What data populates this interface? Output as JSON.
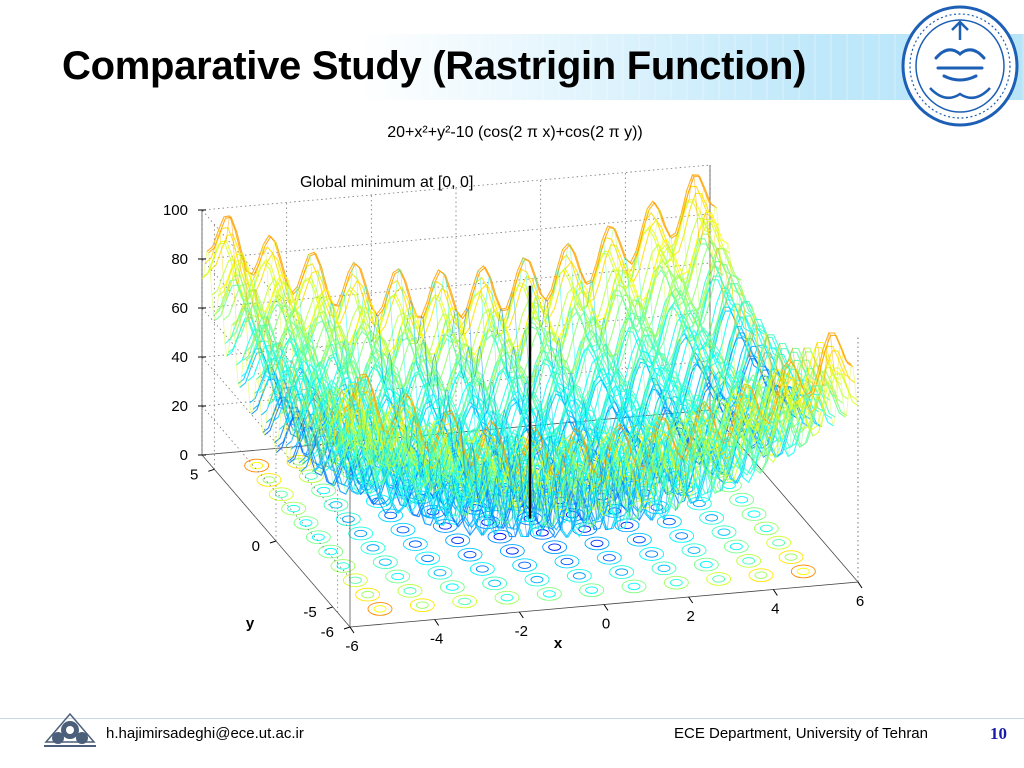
{
  "slide": {
    "title": "Comparative Study (Rastrigin Function)",
    "footer_email": "h.hajimirsadeghi@ece.ut.ac.ir",
    "footer_department": "ECE Department, University of Tehran",
    "page_number": "10"
  },
  "colors": {
    "title_band": "#bfe8fa",
    "seal_blue": "#1d5fb5",
    "page_number": "#1a1aa8"
  },
  "icons": {
    "seal": "university-of-tehran-seal-icon",
    "footer_logo": "ece-department-logo-icon"
  },
  "chart_data": {
    "type": "surface",
    "title": "20+x²+y²-10 (cos(2 π x)+cos(2 π y))",
    "annotation": "Global minimum at [0, 0]",
    "xlabel": "x",
    "ylabel": "y",
    "zlabel": "",
    "x_ticks": [
      "-6",
      "-4",
      "-2",
      "0",
      "2",
      "4",
      "6"
    ],
    "y_ticks": [
      "-6",
      "-5",
      "0",
      "5"
    ],
    "z_ticks": [
      "0",
      "20",
      "40",
      "60",
      "80",
      "100"
    ],
    "xlim": [
      -6,
      6
    ],
    "ylim": [
      -6,
      6
    ],
    "zlim": [
      0,
      100
    ],
    "global_minimum": {
      "x": 0,
      "y": 0,
      "z": 0
    },
    "grid": true,
    "colormap": "jet",
    "contour_projection": true
  }
}
